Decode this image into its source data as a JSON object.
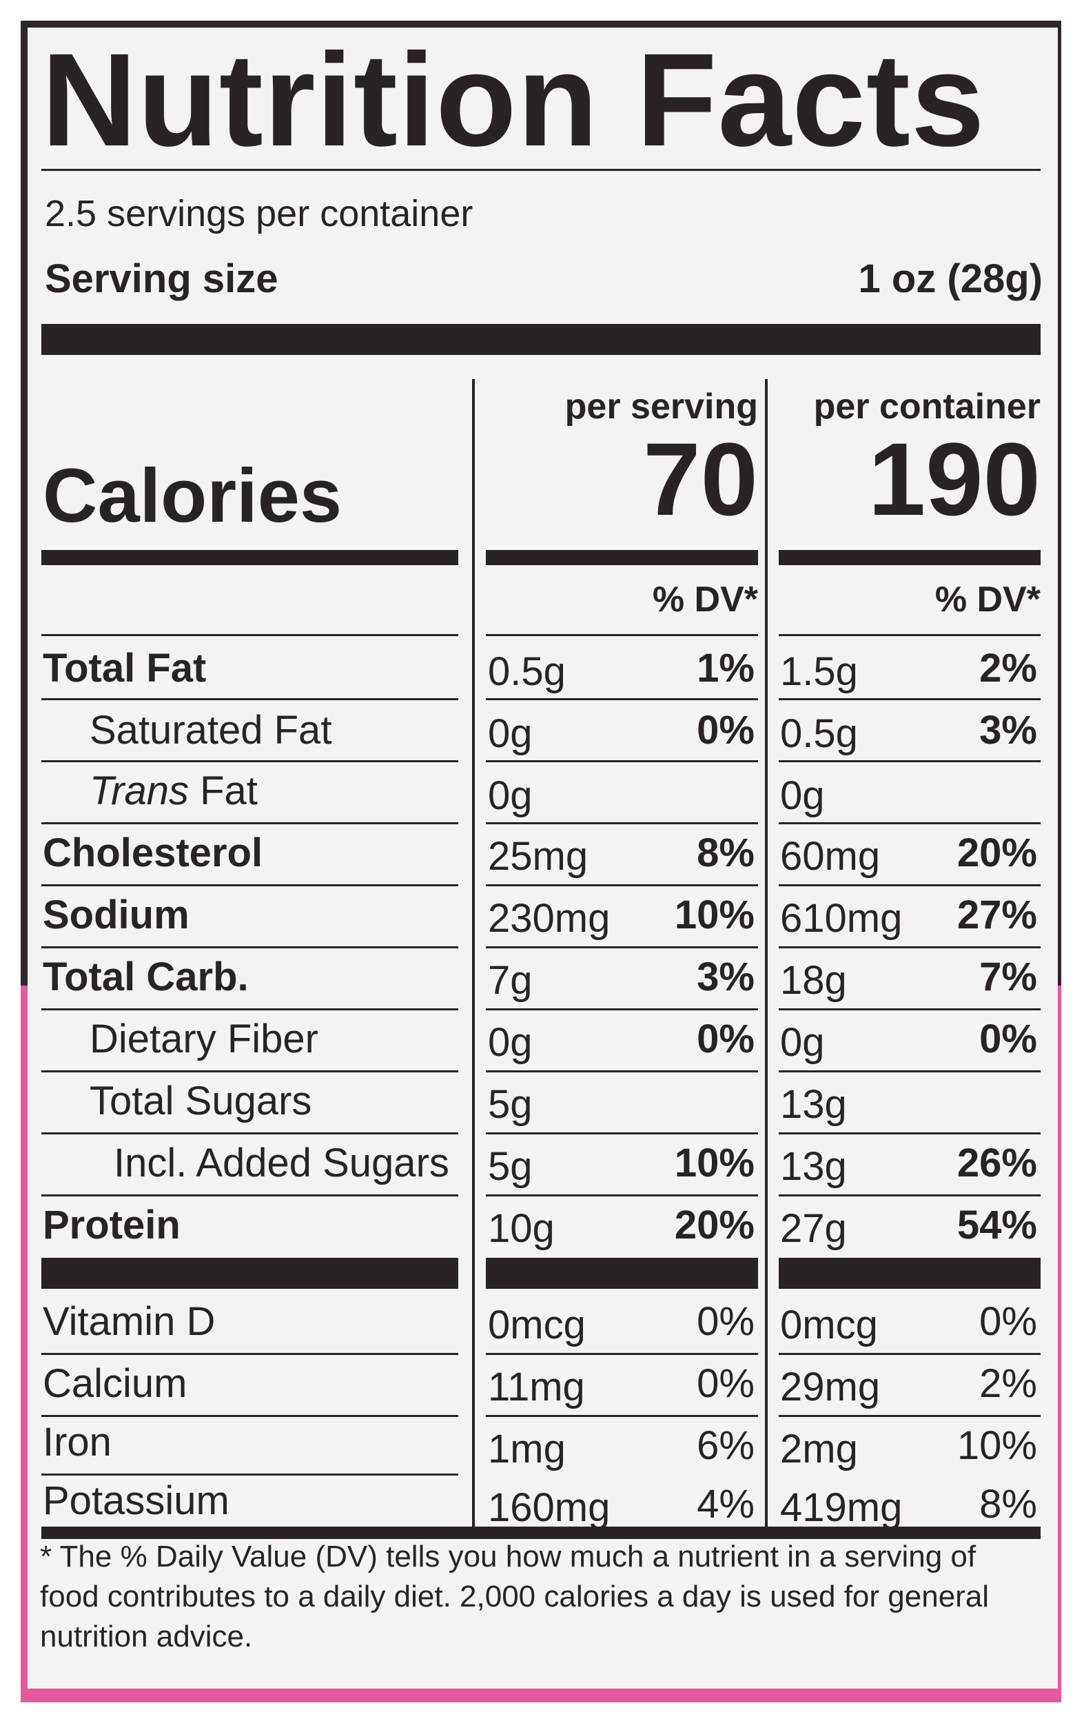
{
  "title": "Nutrition Facts",
  "servings_per_container": "2.5 servings per container",
  "serving_size_label": "Serving size",
  "serving_size_value": "1 oz (28g)",
  "calories_label": "Calories",
  "columns": {
    "per_serving": {
      "header": "per serving",
      "calories": "70",
      "dv_header": "% DV*"
    },
    "per_container": {
      "header": "per container",
      "calories": "190",
      "dv_header": "% DV*"
    }
  },
  "nutrients": [
    {
      "label": "Total Fat",
      "serving_amt": "0.5g",
      "serving_dv": "1%",
      "container_amt": "1.5g",
      "container_dv": "2%"
    },
    {
      "label": "Saturated Fat",
      "serving_amt": "0g",
      "serving_dv": "0%",
      "container_amt": "0.5g",
      "container_dv": "3%"
    },
    {
      "label_italic": "Trans",
      "label_rest": " Fat",
      "serving_amt": "0g",
      "serving_dv": "",
      "container_amt": "0g",
      "container_dv": ""
    },
    {
      "label": "Cholesterol",
      "serving_amt": "25mg",
      "serving_dv": "8%",
      "container_amt": "60mg",
      "container_dv": "20%"
    },
    {
      "label": "Sodium",
      "serving_amt": "230mg",
      "serving_dv": "10%",
      "container_amt": "610mg",
      "container_dv": "27%"
    },
    {
      "label": "Total Carb.",
      "serving_amt": "7g",
      "serving_dv": "3%",
      "container_amt": "18g",
      "container_dv": "7%"
    },
    {
      "label": "Dietary Fiber",
      "serving_amt": "0g",
      "serving_dv": "0%",
      "container_amt": "0g",
      "container_dv": "0%"
    },
    {
      "label": "Total Sugars",
      "serving_amt": "5g",
      "serving_dv": "",
      "container_amt": "13g",
      "container_dv": ""
    },
    {
      "label": "Incl. Added Sugars",
      "serving_amt": "5g",
      "serving_dv": "10%",
      "container_amt": "13g",
      "container_dv": "26%"
    },
    {
      "label": "Protein",
      "serving_amt": "10g",
      "serving_dv": "20%",
      "container_amt": "27g",
      "container_dv": "54%"
    }
  ],
  "vitamins": [
    {
      "label": "Vitamin D",
      "serving_amt": "0mcg",
      "serving_dv": "0%",
      "container_amt": "0mcg",
      "container_dv": "0%"
    },
    {
      "label": "Calcium",
      "serving_amt": "11mg",
      "serving_dv": "0%",
      "container_amt": "29mg",
      "container_dv": "2%"
    },
    {
      "label": "Iron",
      "serving_amt": "1mg",
      "serving_dv": "6%",
      "container_amt": "2mg",
      "container_dv": "10%"
    },
    {
      "label": "Potassium",
      "serving_amt": "160mg",
      "serving_dv": "4%",
      "container_amt": "419mg",
      "container_dv": "8%"
    }
  ],
  "footnote": "* The % Daily Value (DV) tells you how much a nutrient in a serving of food contributes to a daily diet. 2,000 calories a day is used for general nutrition advice.",
  "colors": {
    "ink": "#2a2324",
    "label_bg": "#f4f3f1",
    "package_dark": "#2e2829",
    "package_pink": "#e4589e"
  }
}
